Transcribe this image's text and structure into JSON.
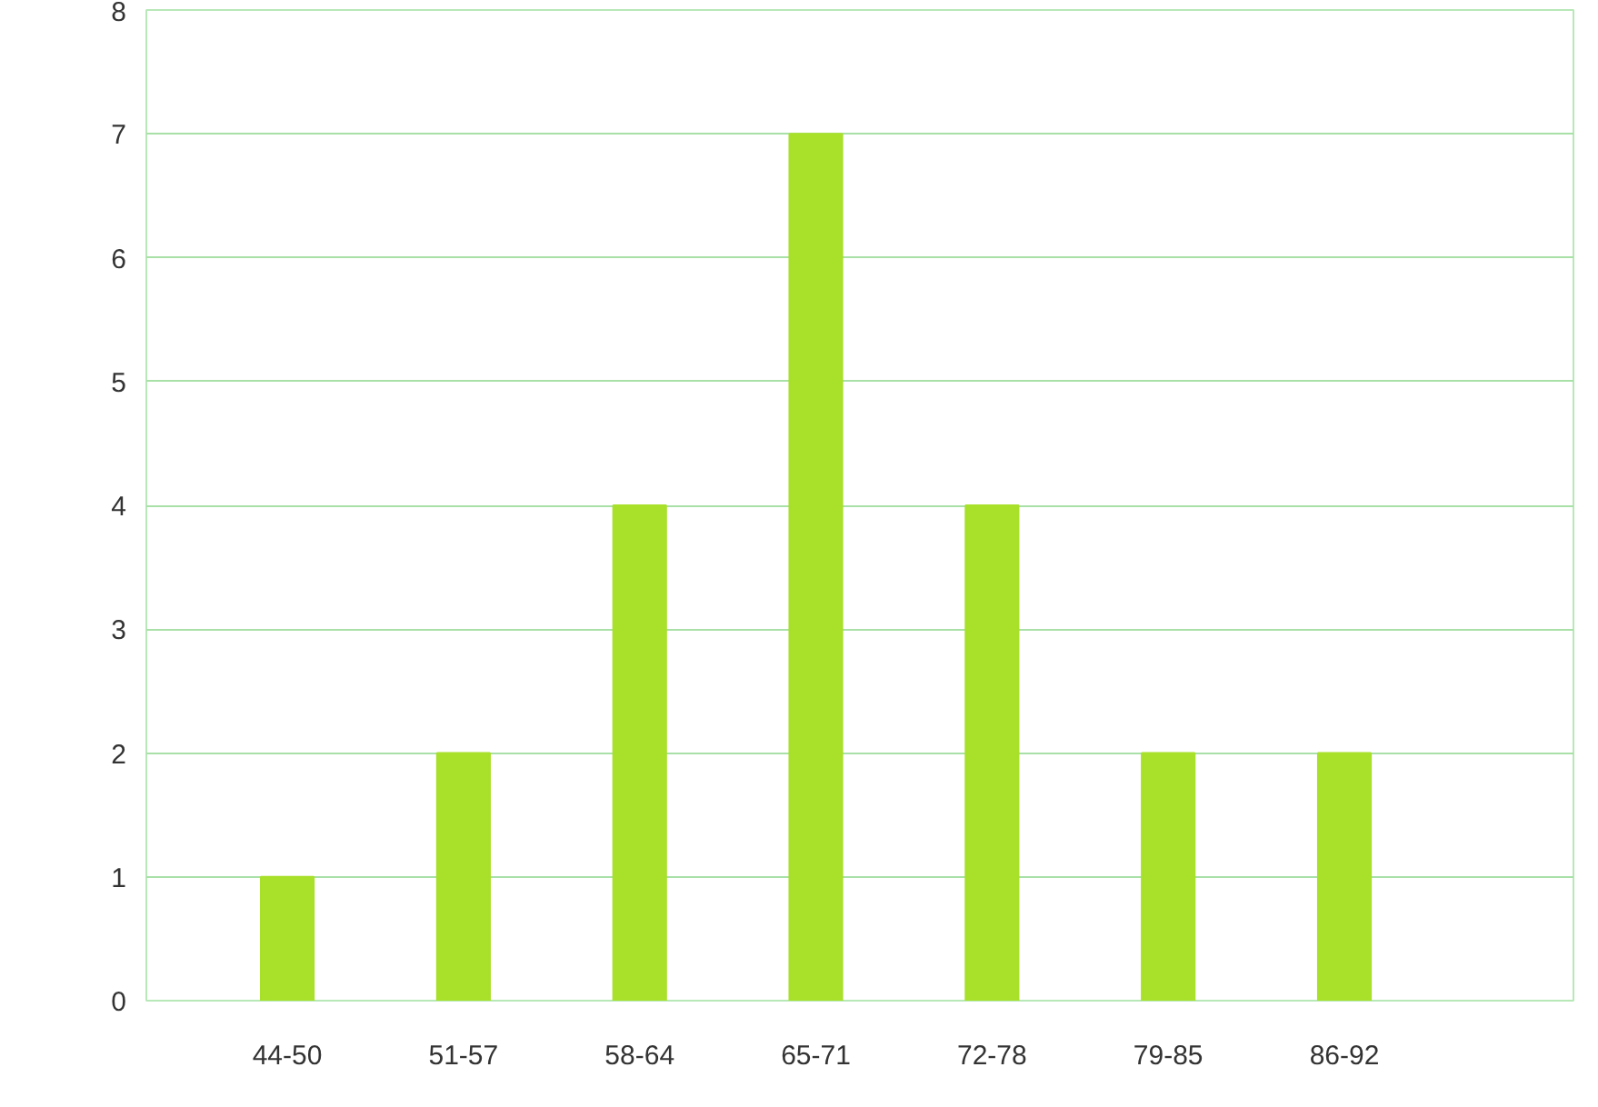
{
  "chart_data": {
    "type": "bar",
    "categories": [
      "44-50",
      "51-57",
      "58-64",
      "65-71",
      "72-78",
      "79-85",
      "86-92"
    ],
    "values": [
      1,
      2,
      4,
      7,
      4,
      2,
      2
    ],
    "color": "#a8e02a",
    "ylim": [
      0,
      8
    ],
    "yticks": [
      0,
      1,
      2,
      3,
      4,
      5,
      6,
      7,
      8
    ],
    "grid": "y"
  }
}
